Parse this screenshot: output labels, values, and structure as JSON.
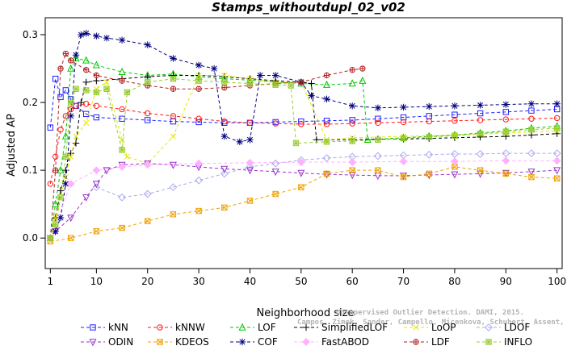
{
  "chart_data": {
    "type": "line",
    "title": "Stamps_withoutdupl_02_v02",
    "xlabel": "Neighborhood size",
    "ylabel": "Adjusted AP",
    "xlim": [
      0,
      101
    ],
    "ylim": [
      -0.045,
      0.325
    ],
    "x_ticks": [
      1,
      10,
      20,
      30,
      40,
      50,
      60,
      70,
      80,
      90,
      100
    ],
    "y_ticks": [
      0.0,
      0.1,
      0.2,
      0.3
    ],
    "y_tick_labels": [
      "0.0",
      "0.1",
      "0.2",
      "0.3"
    ],
    "grid": false,
    "legend_position": "bottom",
    "watermark": [
      "Unsupervised Outlier Detection. DAMI, 2015.",
      "Campos, Zimek, Sander, Campello, Micenkova, Schubert, Assent, Houle"
    ],
    "series": [
      {
        "name": "kNN",
        "color": "#2020ff",
        "marker": "square",
        "points": [
          [
            1,
            0.163
          ],
          [
            2,
            0.235
          ],
          [
            3,
            0.208
          ],
          [
            4,
            0.218
          ],
          [
            5,
            0.205
          ],
          [
            6,
            0.195
          ],
          [
            8,
            0.183
          ],
          [
            10,
            0.178
          ],
          [
            15,
            0.176
          ],
          [
            20,
            0.174
          ],
          [
            25,
            0.172
          ],
          [
            30,
            0.171
          ],
          [
            35,
            0.17
          ],
          [
            40,
            0.17
          ],
          [
            45,
            0.171
          ],
          [
            50,
            0.172
          ],
          [
            55,
            0.173
          ],
          [
            60,
            0.174
          ],
          [
            65,
            0.176
          ],
          [
            70,
            0.178
          ],
          [
            75,
            0.18
          ],
          [
            80,
            0.182
          ],
          [
            85,
            0.184
          ],
          [
            90,
            0.186
          ],
          [
            95,
            0.188
          ],
          [
            100,
            0.19
          ]
        ]
      },
      {
        "name": "kNNW",
        "color": "#ff1a1a",
        "marker": "circle",
        "points": [
          [
            1,
            0.08
          ],
          [
            2,
            0.12
          ],
          [
            3,
            0.16
          ],
          [
            4,
            0.18
          ],
          [
            5,
            0.19
          ],
          [
            6,
            0.195
          ],
          [
            8,
            0.198
          ],
          [
            10,
            0.195
          ],
          [
            15,
            0.19
          ],
          [
            20,
            0.184
          ],
          [
            25,
            0.18
          ],
          [
            30,
            0.176
          ],
          [
            35,
            0.172
          ],
          [
            40,
            0.17
          ],
          [
            45,
            0.169
          ],
          [
            50,
            0.168
          ],
          [
            55,
            0.168
          ],
          [
            60,
            0.169
          ],
          [
            65,
            0.17
          ],
          [
            70,
            0.171
          ],
          [
            75,
            0.172
          ],
          [
            80,
            0.173
          ],
          [
            85,
            0.174
          ],
          [
            90,
            0.175
          ],
          [
            95,
            0.176
          ],
          [
            100,
            0.177
          ]
        ]
      },
      {
        "name": "LOF",
        "color": "#00c800",
        "marker": "triangle-up",
        "points": [
          [
            1,
            0.0
          ],
          [
            2,
            0.05
          ],
          [
            3,
            0.1
          ],
          [
            4,
            0.15
          ],
          [
            5,
            0.25
          ],
          [
            6,
            0.265
          ],
          [
            8,
            0.262
          ],
          [
            10,
            0.255
          ],
          [
            15,
            0.245
          ],
          [
            20,
            0.24
          ],
          [
            25,
            0.242
          ],
          [
            30,
            0.238
          ],
          [
            35,
            0.235
          ],
          [
            40,
            0.233
          ],
          [
            45,
            0.23
          ],
          [
            50,
            0.228
          ],
          [
            55,
            0.226
          ],
          [
            60,
            0.228
          ],
          [
            62,
            0.232
          ],
          [
            63,
            0.145
          ],
          [
            70,
            0.148
          ],
          [
            75,
            0.15
          ],
          [
            80,
            0.152
          ],
          [
            85,
            0.155
          ],
          [
            90,
            0.158
          ],
          [
            95,
            0.162
          ],
          [
            100,
            0.165
          ]
        ]
      },
      {
        "name": "SimplifiedLOF",
        "color": "#000000",
        "marker": "plus",
        "points": [
          [
            1,
            0.0
          ],
          [
            2,
            0.03
          ],
          [
            3,
            0.07
          ],
          [
            4,
            0.1
          ],
          [
            5,
            0.125
          ],
          [
            6,
            0.14
          ],
          [
            7,
            0.2
          ],
          [
            8,
            0.23
          ],
          [
            10,
            0.232
          ],
          [
            15,
            0.235
          ],
          [
            20,
            0.238
          ],
          [
            25,
            0.24
          ],
          [
            30,
            0.24
          ],
          [
            35,
            0.238
          ],
          [
            40,
            0.235
          ],
          [
            45,
            0.232
          ],
          [
            50,
            0.23
          ],
          [
            52,
            0.228
          ],
          [
            53,
            0.145
          ],
          [
            60,
            0.145
          ],
          [
            65,
            0.146
          ],
          [
            70,
            0.146
          ],
          [
            75,
            0.147
          ],
          [
            80,
            0.148
          ],
          [
            85,
            0.149
          ],
          [
            90,
            0.15
          ],
          [
            95,
            0.152
          ],
          [
            100,
            0.154
          ]
        ]
      },
      {
        "name": "LoOP",
        "color": "#e6e600",
        "marker": "x",
        "points": [
          [
            1,
            0.0
          ],
          [
            2,
            0.03
          ],
          [
            3,
            0.06
          ],
          [
            4,
            0.09
          ],
          [
            5,
            0.12
          ],
          [
            6,
            0.15
          ],
          [
            8,
            0.17
          ],
          [
            10,
            0.22
          ],
          [
            12,
            0.23
          ],
          [
            15,
            0.145
          ],
          [
            16,
            0.12
          ],
          [
            20,
            0.11
          ],
          [
            25,
            0.15
          ],
          [
            30,
            0.24
          ],
          [
            35,
            0.24
          ],
          [
            40,
            0.235
          ],
          [
            45,
            0.23
          ],
          [
            50,
            0.23
          ],
          [
            55,
            0.145
          ],
          [
            60,
            0.148
          ],
          [
            70,
            0.15
          ],
          [
            80,
            0.152
          ],
          [
            90,
            0.155
          ],
          [
            100,
            0.158
          ]
        ]
      },
      {
        "name": "LDOF",
        "color": "#aaaaee",
        "marker": "diamond",
        "points": [
          [
            10,
            0.075
          ],
          [
            15,
            0.06
          ],
          [
            20,
            0.065
          ],
          [
            25,
            0.075
          ],
          [
            30,
            0.085
          ],
          [
            35,
            0.095
          ],
          [
            40,
            0.105
          ],
          [
            45,
            0.11
          ],
          [
            50,
            0.115
          ],
          [
            55,
            0.118
          ],
          [
            60,
            0.12
          ],
          [
            65,
            0.121
          ],
          [
            70,
            0.122
          ],
          [
            75,
            0.123
          ],
          [
            80,
            0.124
          ],
          [
            85,
            0.124
          ],
          [
            90,
            0.125
          ],
          [
            95,
            0.125
          ],
          [
            100,
            0.125
          ]
        ]
      },
      {
        "name": "ODIN",
        "color": "#9933cc",
        "marker": "triangle-down",
        "points": [
          [
            1,
            0.0
          ],
          [
            2,
            0.01
          ],
          [
            5,
            0.03
          ],
          [
            8,
            0.06
          ],
          [
            10,
            0.08
          ],
          [
            12,
            0.1
          ],
          [
            15,
            0.108
          ],
          [
            20,
            0.11
          ],
          [
            25,
            0.108
          ],
          [
            30,
            0.105
          ],
          [
            35,
            0.102
          ],
          [
            40,
            0.1
          ],
          [
            45,
            0.098
          ],
          [
            50,
            0.096
          ],
          [
            55,
            0.094
          ],
          [
            60,
            0.093
          ],
          [
            65,
            0.092
          ],
          [
            70,
            0.092
          ],
          [
            75,
            0.093
          ],
          [
            80,
            0.094
          ],
          [
            85,
            0.095
          ],
          [
            90,
            0.096
          ],
          [
            95,
            0.098
          ],
          [
            100,
            0.1
          ]
        ]
      },
      {
        "name": "KDEOS",
        "color": "#f0a000",
        "marker": "square-x",
        "points": [
          [
            1,
            -0.005
          ],
          [
            5,
            0.0
          ],
          [
            10,
            0.01
          ],
          [
            15,
            0.015
          ],
          [
            20,
            0.025
          ],
          [
            25,
            0.035
          ],
          [
            30,
            0.04
          ],
          [
            35,
            0.045
          ],
          [
            40,
            0.055
          ],
          [
            45,
            0.065
          ],
          [
            50,
            0.075
          ],
          [
            55,
            0.095
          ],
          [
            60,
            0.1
          ],
          [
            65,
            0.1
          ],
          [
            70,
            0.09
          ],
          [
            75,
            0.095
          ],
          [
            80,
            0.105
          ],
          [
            85,
            0.1
          ],
          [
            90,
            0.095
          ],
          [
            95,
            0.09
          ],
          [
            100,
            0.088
          ]
        ]
      },
      {
        "name": "COF",
        "color": "#000080",
        "marker": "asterisk",
        "points": [
          [
            1,
            0.0
          ],
          [
            2,
            0.01
          ],
          [
            3,
            0.03
          ],
          [
            4,
            0.08
          ],
          [
            5,
            0.18
          ],
          [
            6,
            0.27
          ],
          [
            7,
            0.3
          ],
          [
            8,
            0.302
          ],
          [
            10,
            0.298
          ],
          [
            12,
            0.295
          ],
          [
            15,
            0.292
          ],
          [
            20,
            0.285
          ],
          [
            25,
            0.265
          ],
          [
            30,
            0.255
          ],
          [
            33,
            0.25
          ],
          [
            35,
            0.15
          ],
          [
            38,
            0.142
          ],
          [
            40,
            0.145
          ],
          [
            42,
            0.24
          ],
          [
            45,
            0.24
          ],
          [
            50,
            0.23
          ],
          [
            52,
            0.21
          ],
          [
            55,
            0.205
          ],
          [
            60,
            0.195
          ],
          [
            65,
            0.192
          ],
          [
            70,
            0.193
          ],
          [
            75,
            0.194
          ],
          [
            80,
            0.195
          ],
          [
            85,
            0.196
          ],
          [
            90,
            0.197
          ],
          [
            95,
            0.198
          ],
          [
            100,
            0.198
          ]
        ]
      },
      {
        "name": "FastABOD",
        "color": "#ffb0ff",
        "marker": "diamond-filled",
        "points": [
          [
            1,
            0.0
          ],
          [
            5,
            0.08
          ],
          [
            10,
            0.1
          ],
          [
            15,
            0.105
          ],
          [
            20,
            0.108
          ],
          [
            30,
            0.11
          ],
          [
            40,
            0.111
          ],
          [
            50,
            0.112
          ],
          [
            60,
            0.112
          ],
          [
            70,
            0.113
          ],
          [
            80,
            0.113
          ],
          [
            90,
            0.114
          ],
          [
            100,
            0.114
          ]
        ]
      },
      {
        "name": "LDF",
        "color": "#b22222",
        "marker": "circle-plus",
        "points": [
          [
            1,
            0.0
          ],
          [
            2,
            0.1
          ],
          [
            3,
            0.25
          ],
          [
            4,
            0.272
          ],
          [
            5,
            0.262
          ],
          [
            8,
            0.248
          ],
          [
            10,
            0.24
          ],
          [
            15,
            0.232
          ],
          [
            20,
            0.225
          ],
          [
            25,
            0.22
          ],
          [
            30,
            0.22
          ],
          [
            35,
            0.222
          ],
          [
            40,
            0.225
          ],
          [
            45,
            0.228
          ],
          [
            50,
            0.23
          ],
          [
            55,
            0.24
          ],
          [
            60,
            0.248
          ],
          [
            62,
            0.25
          ]
        ]
      },
      {
        "name": "INFLO",
        "color": "#99cc33",
        "marker": "square-cross",
        "points": [
          [
            1,
            0.0
          ],
          [
            2,
            0.02
          ],
          [
            3,
            0.06
          ],
          [
            4,
            0.12
          ],
          [
            5,
            0.2
          ],
          [
            6,
            0.22
          ],
          [
            8,
            0.218
          ],
          [
            10,
            0.215
          ],
          [
            12,
            0.22
          ],
          [
            15,
            0.13
          ],
          [
            16,
            0.215
          ],
          [
            20,
            0.23
          ],
          [
            25,
            0.235
          ],
          [
            30,
            0.232
          ],
          [
            35,
            0.23
          ],
          [
            40,
            0.228
          ],
          [
            45,
            0.226
          ],
          [
            48,
            0.225
          ],
          [
            49,
            0.14
          ],
          [
            55,
            0.142
          ],
          [
            60,
            0.143
          ],
          [
            65,
            0.145
          ],
          [
            70,
            0.147
          ],
          [
            75,
            0.149
          ],
          [
            80,
            0.151
          ],
          [
            85,
            0.154
          ],
          [
            90,
            0.157
          ],
          [
            95,
            0.16
          ],
          [
            100,
            0.162
          ]
        ]
      }
    ]
  }
}
